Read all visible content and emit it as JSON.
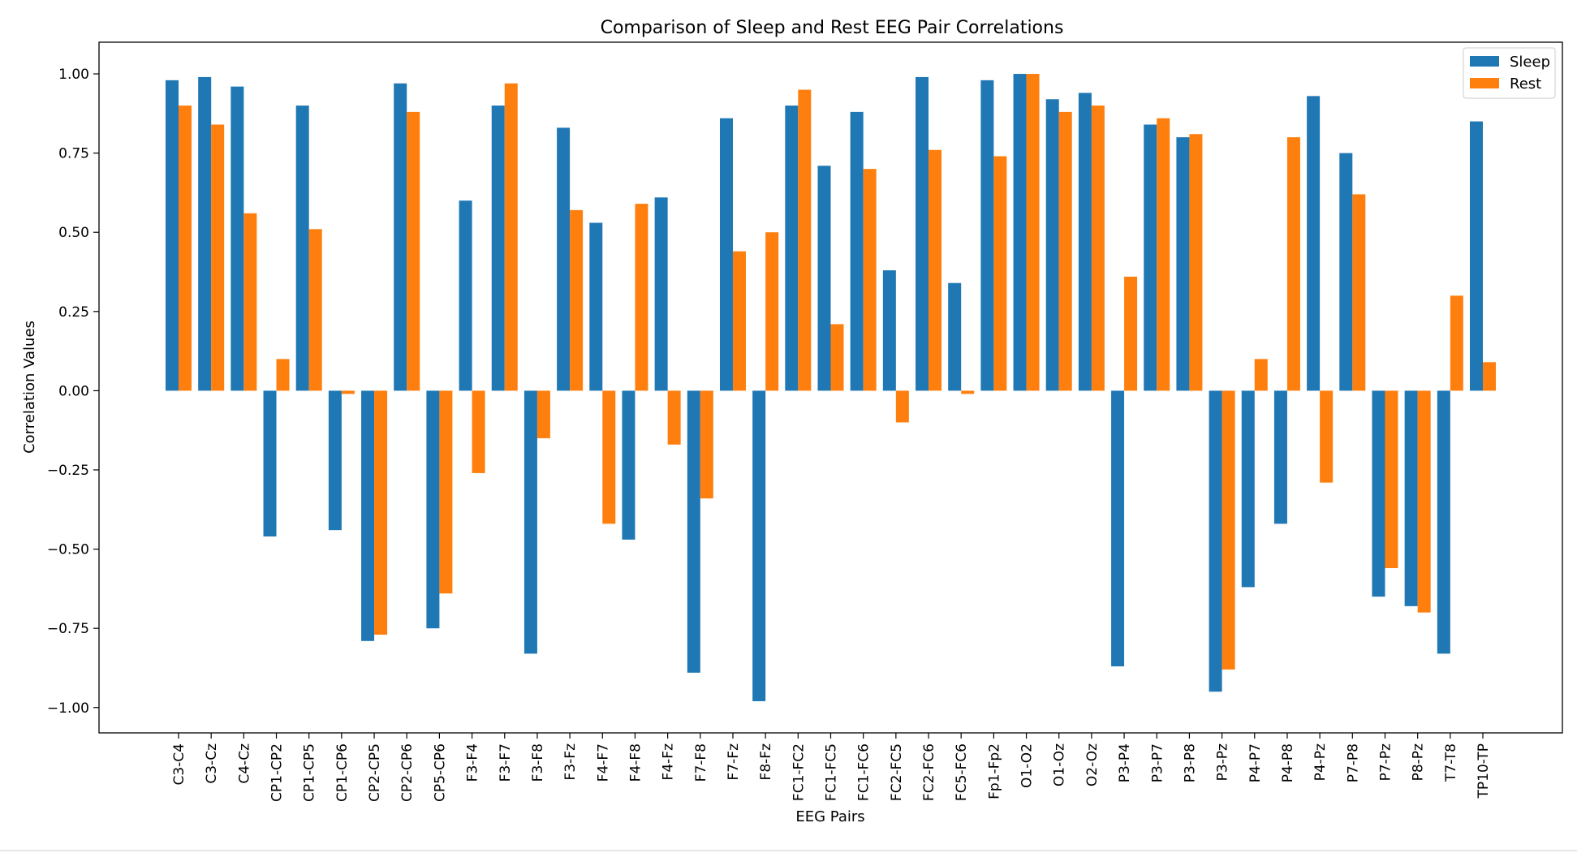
{
  "chart_data": {
    "type": "bar",
    "title": "Comparison of Sleep and Rest EEG Pair Correlations",
    "xlabel": "EEG Pairs",
    "ylabel": "Correlation Values",
    "ylim": [
      -1.08,
      1.1
    ],
    "yticks": [
      "1.00",
      "0.75",
      "0.50",
      "0.25",
      "0.00",
      "−0.25",
      "−0.50",
      "−0.75",
      "−1.00"
    ],
    "ytick_values": [
      1.0,
      0.75,
      0.5,
      0.25,
      0.0,
      -0.25,
      -0.5,
      -0.75,
      -1.0
    ],
    "grid": false,
    "legend_position": "top-right",
    "categories": [
      "C3-C4",
      "C3-Cz",
      "C4-Cz",
      "CP1-CP2",
      "CP1-CP5",
      "CP1-CP6",
      "CP2-CP5",
      "CP2-CP6",
      "CP5-CP6",
      "F3-F4",
      "F3-F7",
      "F3-F8",
      "F3-Fz",
      "F4-F7",
      "F4-F8",
      "F4-Fz",
      "F7-F8",
      "F7-Fz",
      "F8-Fz",
      "FC1-FC2",
      "FC1-FC5",
      "FC1-FC6",
      "FC2-FC5",
      "FC2-FC6",
      "FC5-FC6",
      "Fp1-Fp2",
      "O1-O2",
      "O1-Oz",
      "O2-Oz",
      "P3-P4",
      "P3-P7",
      "P3-P8",
      "P3-Pz",
      "P4-P7",
      "P4-P8",
      "P4-Pz",
      "P7-P8",
      "P7-Pz",
      "P8-Pz",
      "T7-T8",
      "TP10-TP"
    ],
    "series": [
      {
        "name": "Sleep",
        "color": "#1f77b4",
        "values": [
          0.98,
          0.99,
          0.96,
          -0.46,
          0.9,
          -0.44,
          -0.79,
          0.97,
          -0.75,
          0.6,
          0.9,
          -0.83,
          0.83,
          0.53,
          -0.47,
          0.61,
          -0.89,
          0.86,
          -0.98,
          0.9,
          0.71,
          0.88,
          0.38,
          0.99,
          0.34,
          0.98,
          1.0,
          0.92,
          0.94,
          -0.87,
          0.84,
          0.8,
          -0.95,
          -0.62,
          -0.42,
          0.93,
          0.75,
          -0.65,
          -0.68,
          -0.83,
          0.85
        ]
      },
      {
        "name": "Rest",
        "color": "#ff7f0e",
        "values": [
          0.9,
          0.84,
          0.56,
          0.1,
          0.51,
          -0.01,
          -0.77,
          0.88,
          -0.64,
          -0.26,
          0.97,
          -0.15,
          0.57,
          -0.42,
          0.59,
          -0.17,
          -0.34,
          0.44,
          0.5,
          0.95,
          0.21,
          0.7,
          -0.1,
          0.76,
          -0.01,
          0.74,
          1.0,
          0.88,
          0.9,
          0.36,
          0.86,
          0.81,
          -0.88,
          0.1,
          0.8,
          -0.29,
          0.62,
          -0.56,
          -0.7,
          0.3,
          0.09
        ]
      }
    ]
  }
}
